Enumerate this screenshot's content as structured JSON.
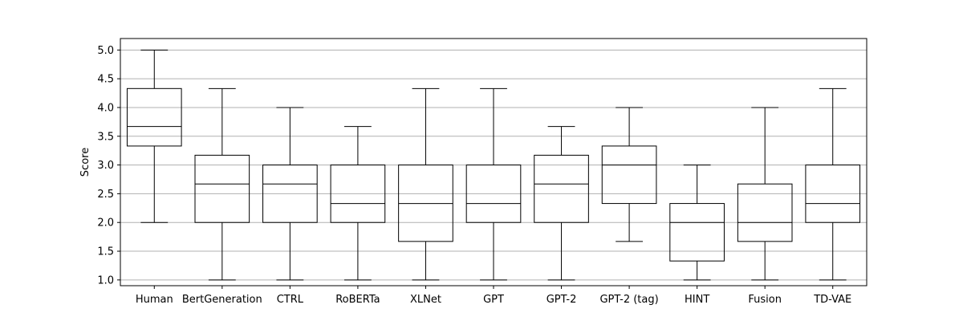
{
  "chart_data": {
    "type": "box",
    "title": "",
    "xlabel": "",
    "ylabel": "Score",
    "ylim": [
      0.9,
      5.2
    ],
    "yticks": [
      "1.0",
      "1.5",
      "2.0",
      "2.5",
      "3.0",
      "3.5",
      "4.0",
      "4.5",
      "5.0"
    ],
    "grid": "y",
    "categories": [
      "Human",
      "BertGeneration",
      "CTRL",
      "RoBERTa",
      "XLNet",
      "GPT",
      "GPT-2",
      "GPT-2 (tag)",
      "HINT",
      "Fusion",
      "TD-VAE"
    ],
    "boxes": [
      {
        "whisker_low": 2.0,
        "q1": 3.33,
        "median": 3.67,
        "q3": 4.33,
        "whisker_high": 5.0
      },
      {
        "whisker_low": 1.0,
        "q1": 2.0,
        "median": 2.67,
        "q3": 3.17,
        "whisker_high": 4.33
      },
      {
        "whisker_low": 1.0,
        "q1": 2.0,
        "median": 2.67,
        "q3": 3.0,
        "whisker_high": 4.0
      },
      {
        "whisker_low": 1.0,
        "q1": 2.0,
        "median": 2.33,
        "q3": 3.0,
        "whisker_high": 3.67
      },
      {
        "whisker_low": 1.0,
        "q1": 1.67,
        "median": 2.33,
        "q3": 3.0,
        "whisker_high": 4.33
      },
      {
        "whisker_low": 1.0,
        "q1": 2.0,
        "median": 2.33,
        "q3": 3.0,
        "whisker_high": 4.33
      },
      {
        "whisker_low": 1.0,
        "q1": 2.0,
        "median": 2.67,
        "q3": 3.17,
        "whisker_high": 3.67
      },
      {
        "whisker_low": 1.67,
        "q1": 2.33,
        "median": 3.0,
        "q3": 3.33,
        "whisker_high": 4.0
      },
      {
        "whisker_low": 1.0,
        "q1": 1.33,
        "median": 2.0,
        "q3": 2.33,
        "whisker_high": 3.0
      },
      {
        "whisker_low": 1.0,
        "q1": 1.67,
        "median": 2.0,
        "q3": 2.67,
        "whisker_high": 4.0
      },
      {
        "whisker_low": 1.0,
        "q1": 2.0,
        "median": 2.33,
        "q3": 3.0,
        "whisker_high": 4.33
      }
    ],
    "colors": {
      "box": "#000000",
      "grid": "#b0b0b0",
      "background": "#ffffff"
    }
  }
}
